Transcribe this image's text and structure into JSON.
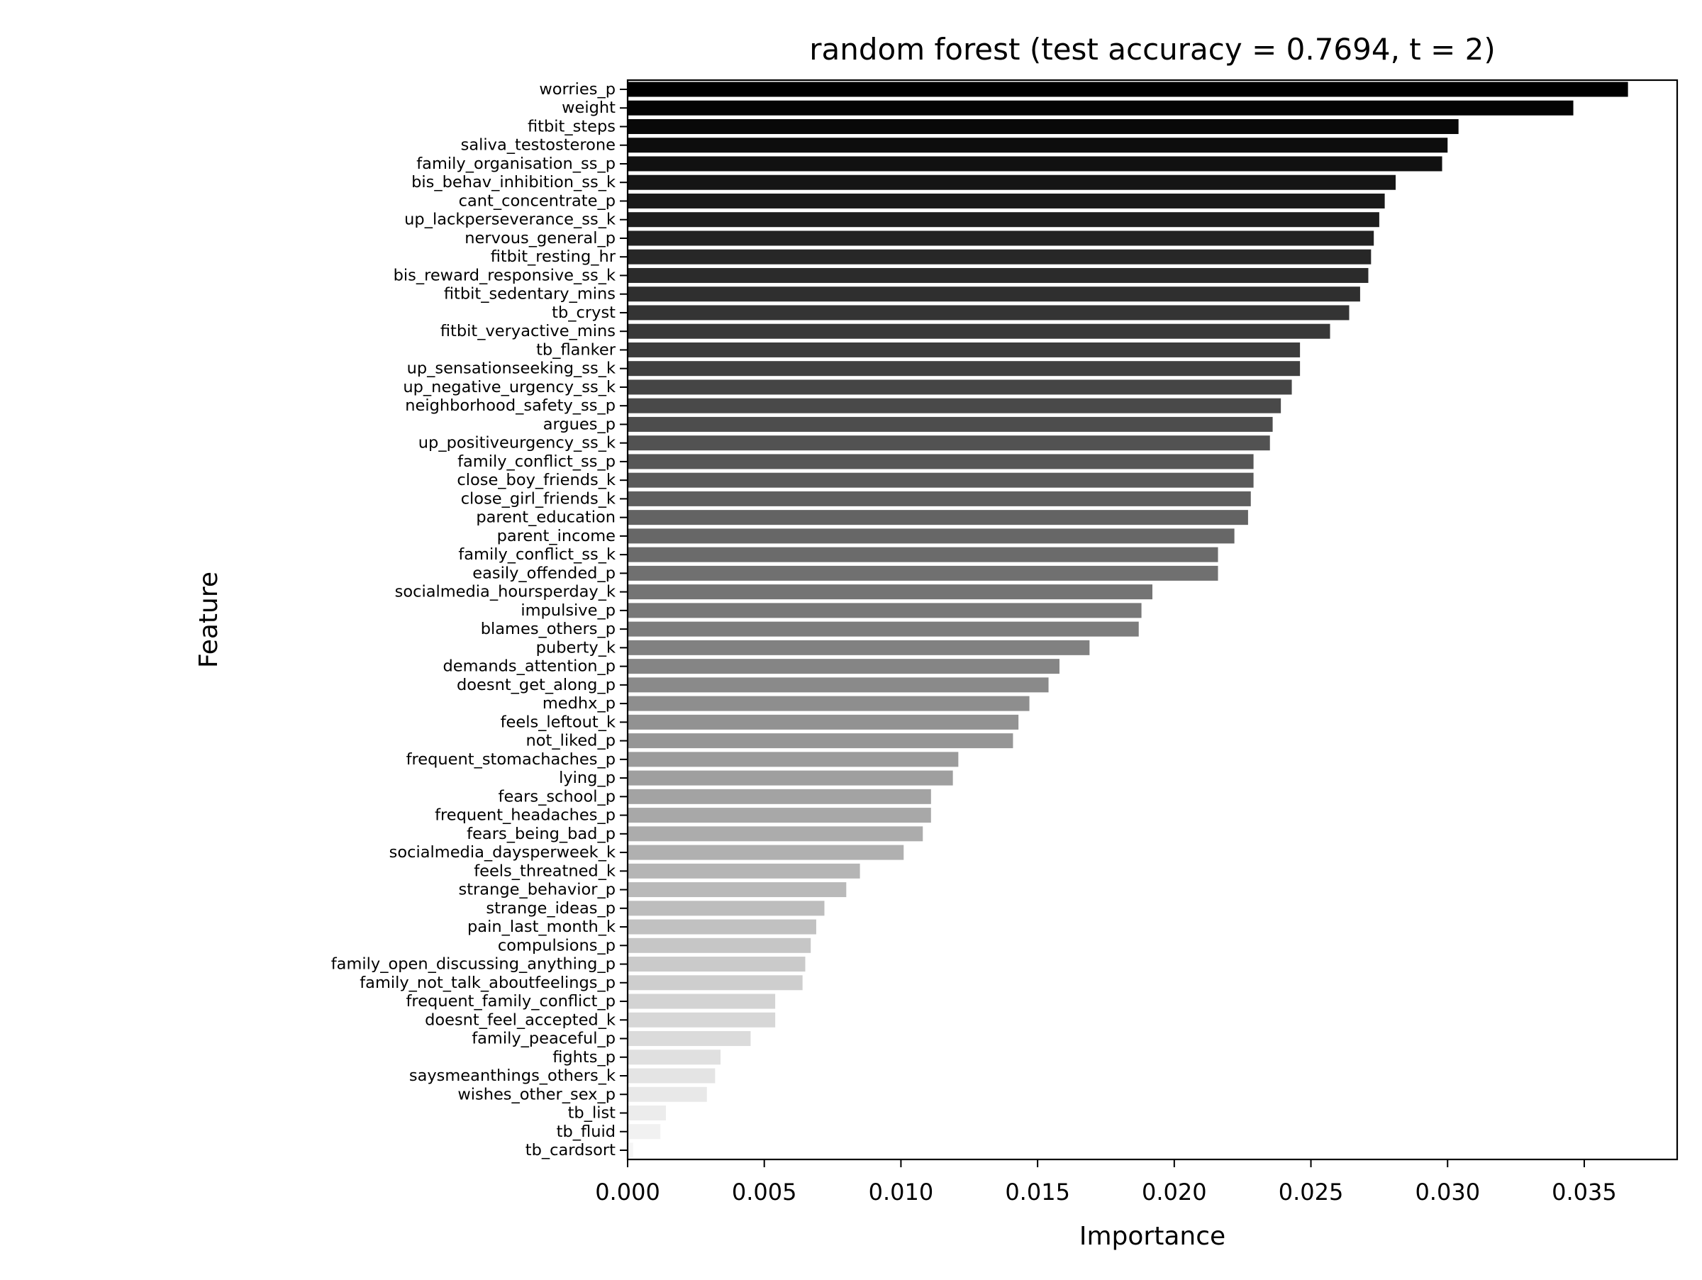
{
  "chart_data": {
    "type": "bar",
    "orientation": "horizontal",
    "title": "random forest (test accuracy = 0.7694, t = 2)",
    "xlabel": "Importance",
    "ylabel": "Feature",
    "xlim": [
      0,
      0.0384
    ],
    "xticks": [
      "0.000",
      "0.005",
      "0.010",
      "0.015",
      "0.020",
      "0.025",
      "0.030",
      "0.035"
    ],
    "grid": false,
    "legend": "none",
    "color_scale": [
      "#000000",
      "#f5f5f5"
    ],
    "categories": [
      "worries_p",
      "weight",
      "fitbit_steps",
      "saliva_testosterone",
      "family_organisation_ss_p",
      "bis_behav_inhibition_ss_k",
      "cant_concentrate_p",
      "up_lackperseverance_ss_k",
      "nervous_general_p",
      "fitbit_resting_hr",
      "bis_reward_responsive_ss_k",
      "fitbit_sedentary_mins",
      "tb_cryst",
      "fitbit_veryactive_mins",
      "tb_flanker",
      "up_sensationseeking_ss_k",
      "up_negative_urgency_ss_k",
      "neighborhood_safety_ss_p",
      "argues_p",
      "up_positiveurgency_ss_k",
      "family_conflict_ss_p",
      "close_boy_friends_k",
      "close_girl_friends_k",
      "parent_education",
      "parent_income",
      "family_conflict_ss_k",
      "easily_offended_p",
      "socialmedia_hoursperday_k",
      "impulsive_p",
      "blames_others_p",
      "puberty_k",
      "demands_attention_p",
      "doesnt_get_along_p",
      "medhx_p",
      "feels_leftout_k",
      "not_liked_p",
      "frequent_stomachaches_p",
      "lying_p",
      "fears_school_p",
      "frequent_headaches_p",
      "fears_being_bad_p",
      "socialmedia_daysperweek_k",
      "feels_threatned_k",
      "strange_behavior_p",
      "strange_ideas_p",
      "pain_last_month_k",
      "compulsions_p",
      "family_open_discussing_anything_p",
      "family_not_talk_aboutfeelings_p",
      "frequent_family_conflict_p",
      "doesnt_feel_accepted_k",
      "family_peaceful_p",
      "fights_p",
      "saysmeanthings_others_k",
      "wishes_other_sex_p",
      "tb_list",
      "tb_fluid",
      "tb_cardsort"
    ],
    "values": [
      0.0366,
      0.0346,
      0.0304,
      0.03,
      0.0298,
      0.0281,
      0.0277,
      0.0275,
      0.0273,
      0.0272,
      0.0271,
      0.0268,
      0.0264,
      0.0257,
      0.0246,
      0.0246,
      0.0243,
      0.0239,
      0.0236,
      0.0235,
      0.0229,
      0.0229,
      0.0228,
      0.0227,
      0.0222,
      0.0216,
      0.0216,
      0.0192,
      0.0188,
      0.0187,
      0.0169,
      0.0158,
      0.0154,
      0.0147,
      0.0143,
      0.0141,
      0.0121,
      0.0119,
      0.0111,
      0.0111,
      0.0108,
      0.0101,
      0.0085,
      0.008,
      0.0072,
      0.0069,
      0.0067,
      0.0065,
      0.0064,
      0.0054,
      0.0054,
      0.0045,
      0.0034,
      0.0032,
      0.0029,
      0.0014,
      0.0012,
      0.0002
    ]
  }
}
